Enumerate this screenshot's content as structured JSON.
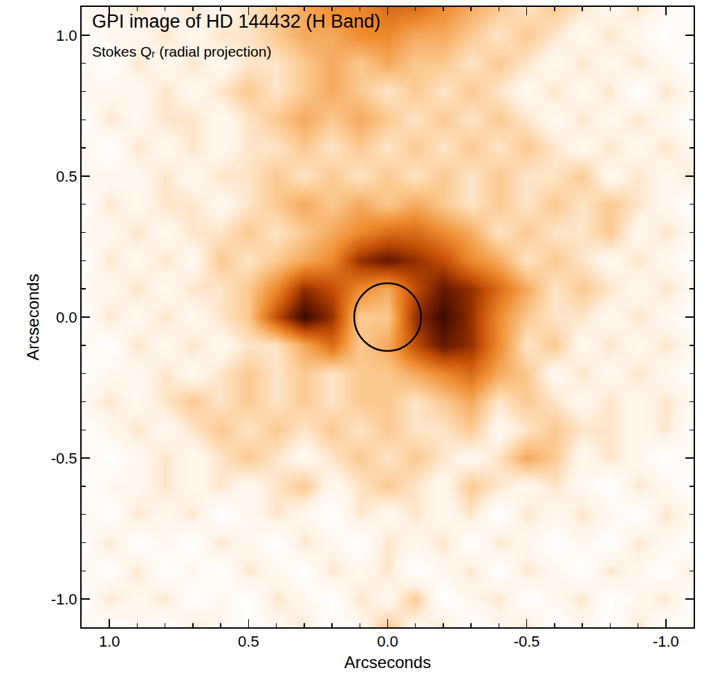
{
  "chart_data": {
    "type": "heatmap",
    "title": "GPI image of HD 144432 (H Band)",
    "subtitle": "Stokes Qᵣ (radial projection)",
    "x_label": "Arcseconds",
    "y_label": "Arcseconds",
    "xlim": [
      1.1,
      -1.1
    ],
    "ylim": [
      -1.1,
      1.1
    ],
    "xticks": [
      {
        "value": 1.0,
        "label": "1.0"
      },
      {
        "value": 0.5,
        "label": "0.5"
      },
      {
        "value": 0.0,
        "label": "0.0"
      },
      {
        "value": -0.5,
        "label": "-0.5"
      },
      {
        "value": -1.0,
        "label": "-1.0"
      }
    ],
    "yticks": [
      {
        "value": -1.0,
        "label": "-1.0"
      },
      {
        "value": -0.5,
        "label": "-0.5"
      },
      {
        "value": 0.0,
        "label": "0.0"
      },
      {
        "value": 0.5,
        "label": "0.5"
      },
      {
        "value": 1.0,
        "label": "1.0"
      }
    ],
    "zlim": [
      0,
      1
    ],
    "mask_circle": {
      "center": [
        0,
        0
      ],
      "radius": 0.12
    },
    "x": [
      -1.1,
      -1.0,
      -0.9,
      -0.8,
      -0.7,
      -0.6,
      -0.5,
      -0.4,
      -0.3,
      -0.2,
      -0.1,
      0.0,
      0.1,
      0.2,
      0.3,
      0.4,
      0.5,
      0.6,
      0.7,
      0.8,
      0.9,
      1.0,
      1.1
    ],
    "y": [
      -1.1,
      -1.0,
      -0.9,
      -0.8,
      -0.7,
      -0.6,
      -0.5,
      -0.4,
      -0.3,
      -0.2,
      -0.1,
      0.0,
      0.1,
      0.2,
      0.3,
      0.4,
      0.5,
      0.6,
      0.7,
      0.8,
      0.9,
      1.0,
      1.1
    ],
    "cells": [
      [
        0.1,
        0,
        0.2,
        0,
        0.1,
        0,
        0.2,
        0.1,
        0,
        0.2,
        0.1,
        0.3,
        0.1,
        0,
        0.2,
        0.1,
        0,
        0.1,
        0.2,
        0,
        0.1,
        0,
        0.1
      ],
      [
        0,
        0.2,
        0.1,
        0,
        0.2,
        0.1,
        0,
        0.2,
        0.1,
        0,
        0.3,
        0.1,
        0.2,
        0,
        0.1,
        0.2,
        0,
        0.1,
        0,
        0.2,
        0.1,
        0.2,
        0
      ],
      [
        0.2,
        0,
        0.1,
        0.2,
        0,
        0.1,
        0.2,
        0,
        0.2,
        0.1,
        0,
        0.2,
        0.1,
        0.2,
        0,
        0.1,
        0.2,
        0,
        0.1,
        0,
        0.2,
        0,
        0.1
      ],
      [
        0,
        0.1,
        0.2,
        0,
        0.1,
        0,
        0.1,
        0.2,
        0,
        0.2,
        0.1,
        0.2,
        0,
        0.1,
        0.2,
        0,
        0.1,
        0.2,
        0,
        0.1,
        0,
        0.2,
        0
      ],
      [
        0.1,
        0.2,
        0,
        0.1,
        0.2,
        0.1,
        0.2,
        0,
        0.2,
        0.1,
        0.2,
        0.1,
        0.2,
        0,
        0.1,
        0.2,
        0.1,
        0,
        0.2,
        0.1,
        0.2,
        0,
        0.1
      ],
      [
        0,
        0.1,
        0.2,
        0,
        0.1,
        0.2,
        0.1,
        0.2,
        0.3,
        0.1,
        0.2,
        0.3,
        0.2,
        0.1,
        0.3,
        0.2,
        0.1,
        0.2,
        0.1,
        0.2,
        0.1,
        0.1,
        0
      ],
      [
        0.1,
        0,
        0.1,
        0.2,
        0.1,
        0.3,
        0.4,
        0.2,
        0.1,
        0.2,
        0.3,
        0.2,
        0.3,
        0.2,
        0.1,
        0.2,
        0.3,
        0.2,
        0.1,
        0.2,
        0.1,
        0,
        0.1
      ],
      [
        0,
        0.2,
        0.1,
        0.2,
        0.2,
        0.3,
        0.2,
        0.1,
        0.3,
        0.2,
        0.2,
        0.3,
        0.2,
        0.3,
        0.2,
        0.3,
        0.2,
        0.3,
        0.2,
        0.1,
        0.2,
        0.1,
        0
      ],
      [
        0.1,
        0.2,
        0.1,
        0.2,
        0.1,
        0.2,
        0.3,
        0.2,
        0.4,
        0.3,
        0.2,
        0.3,
        0.3,
        0.2,
        0.3,
        0.2,
        0.3,
        0.2,
        0.3,
        0.2,
        0.1,
        0.2,
        0.1
      ],
      [
        0,
        0.1,
        0.2,
        0.1,
        0.2,
        0.1,
        0.3,
        0.4,
        0.6,
        0.5,
        0.4,
        0.3,
        0.3,
        0.2,
        0.3,
        0.2,
        0.3,
        0.2,
        0.1,
        0.2,
        0.1,
        0.1,
        0
      ],
      [
        0.1,
        0.2,
        0.1,
        0.2,
        0.1,
        0.3,
        0.2,
        0.5,
        0.8,
        0.9,
        0.7,
        0.4,
        0.3,
        0.6,
        0.4,
        0.2,
        0.2,
        0.1,
        0.2,
        0.1,
        0.2,
        0,
        0.1
      ],
      [
        0,
        0.1,
        0.2,
        0.1,
        0.2,
        0.2,
        0.3,
        0.5,
        0.8,
        1.0,
        0.8,
        0.3,
        0.3,
        0.8,
        1.0,
        0.7,
        0.3,
        0.2,
        0.1,
        0.2,
        0.1,
        0.2,
        0
      ],
      [
        0.1,
        0.2,
        0.1,
        0.2,
        0.3,
        0.2,
        0.4,
        0.6,
        0.8,
        0.9,
        0.7,
        0.4,
        0.5,
        0.7,
        0.8,
        0.5,
        0.3,
        0.2,
        0.2,
        0.1,
        0.2,
        0.1,
        0.1
      ],
      [
        0,
        0.1,
        0.2,
        0.1,
        0.2,
        0.3,
        0.2,
        0.4,
        0.5,
        0.7,
        0.8,
        0.9,
        0.8,
        0.5,
        0.4,
        0.3,
        0.2,
        0.3,
        0.1,
        0.2,
        0.1,
        0.2,
        0
      ],
      [
        0.1,
        0.2,
        0.1,
        0.3,
        0.2,
        0.2,
        0.3,
        0.2,
        0.4,
        0.5,
        0.6,
        0.6,
        0.5,
        0.4,
        0.3,
        0.2,
        0.3,
        0.2,
        0.2,
        0.1,
        0.2,
        0.1,
        0.1
      ],
      [
        0,
        0.1,
        0.2,
        0.3,
        0.2,
        0.3,
        0.2,
        0.3,
        0.2,
        0.3,
        0.4,
        0.3,
        0.4,
        0.3,
        0.4,
        0.3,
        0.2,
        0.1,
        0.2,
        0.2,
        0.1,
        0.2,
        0
      ],
      [
        0.2,
        0.1,
        0.2,
        0.1,
        0.3,
        0.2,
        0.2,
        0.3,
        0.2,
        0.3,
        0.2,
        0.3,
        0.2,
        0.3,
        0.2,
        0.3,
        0.2,
        0.2,
        0.1,
        0.2,
        0.1,
        0.1,
        0.1
      ],
      [
        0.1,
        0.2,
        0.1,
        0.2,
        0.1,
        0.2,
        0.3,
        0.2,
        0.3,
        0.2,
        0.3,
        0.2,
        0.3,
        0.2,
        0.3,
        0.2,
        0.2,
        0.1,
        0.2,
        0.1,
        0.2,
        0,
        0.1
      ],
      [
        0,
        0.1,
        0.2,
        0.1,
        0.2,
        0.1,
        0.2,
        0.3,
        0.2,
        0.3,
        0.2,
        0.3,
        0.4,
        0.3,
        0.4,
        0.3,
        0.2,
        0.1,
        0.2,
        0.2,
        0.1,
        0.2,
        0
      ],
      [
        0.1,
        0.2,
        0,
        0.2,
        0.1,
        0.2,
        0.1,
        0.2,
        0.3,
        0.2,
        0.3,
        0.2,
        0.3,
        0.4,
        0.3,
        0.2,
        0.3,
        0.2,
        0.1,
        0.2,
        0.1,
        0.1,
        0.1
      ],
      [
        0,
        0.1,
        0.2,
        0.1,
        0.2,
        0.1,
        0.2,
        0.3,
        0.2,
        0.3,
        0.3,
        0.4,
        0.3,
        0.4,
        0.3,
        0.2,
        0.2,
        0.1,
        0.2,
        0.1,
        0.2,
        0,
        0.1
      ],
      [
        0.1,
        0,
        0.1,
        0.2,
        0.1,
        0.2,
        0.3,
        0.2,
        0.3,
        0.4,
        0.4,
        0.5,
        0.5,
        0.4,
        0.4,
        0.3,
        0.2,
        0.2,
        0.1,
        0.2,
        0.1,
        0.1,
        0
      ],
      [
        0,
        0.1,
        0.2,
        0.1,
        0.2,
        0.3,
        0.2,
        0.3,
        0.4,
        0.5,
        0.6,
        0.6,
        0.5,
        0.5,
        0.4,
        0.3,
        0.2,
        0.1,
        0.2,
        0.1,
        0.2,
        0.1,
        0.1
      ]
    ]
  }
}
